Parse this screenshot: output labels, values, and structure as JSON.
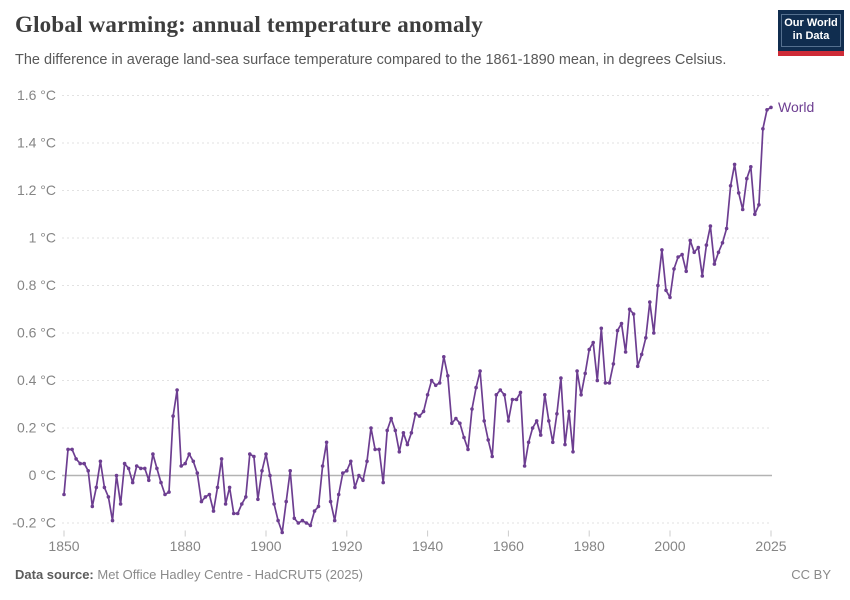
{
  "header": {
    "title": "Global warming: annual temperature anomaly",
    "subtitle": "The difference in average land-sea surface temperature compared to the 1861-1890 mean, in degrees Celsius.",
    "logo": {
      "line1": "Our World",
      "line2": "in Data",
      "bg_color": "#102D4F",
      "accent_color": "#CE2B37"
    }
  },
  "footer": {
    "source_label": "Data source:",
    "source_value": "Met Office Hadley Centre - HadCRUT5 (2025)",
    "license": "CC BY"
  },
  "chart_data": {
    "type": "line",
    "title": "Global warming: annual temperature anomaly",
    "subtitle": "The difference in average land-sea surface temperature compared to the 1861-1890 mean, in degrees Celsius.",
    "xlabel": "",
    "ylabel": "",
    "xlim": [
      1850,
      2025
    ],
    "ylim": [
      -0.3,
      1.65
    ],
    "grid": "horizontal-dashed",
    "zero_line": true,
    "legend_position": "end-of-line-label",
    "x_ticks": [
      1850,
      1880,
      1900,
      1920,
      1940,
      1960,
      1980,
      2000,
      2025
    ],
    "y_ticks": [
      -0.2,
      0,
      0.2,
      0.4,
      0.6,
      0.8,
      1,
      1.2,
      1.4,
      1.6
    ],
    "y_tick_labels": [
      "-0.2 °C",
      "0 °C",
      "0.2 °C",
      "0.4 °C",
      "0.6 °C",
      "0.8 °C",
      "1 °C",
      "1.2 °C",
      "1.4 °C",
      "1.6 °C"
    ],
    "unit": "°C",
    "series": [
      {
        "name": "World",
        "color": "#6D3E91",
        "x": [
          1850,
          1851,
          1852,
          1853,
          1854,
          1855,
          1856,
          1857,
          1858,
          1859,
          1860,
          1861,
          1862,
          1863,
          1864,
          1865,
          1866,
          1867,
          1868,
          1869,
          1870,
          1871,
          1872,
          1873,
          1874,
          1875,
          1876,
          1877,
          1878,
          1879,
          1880,
          1881,
          1882,
          1883,
          1884,
          1885,
          1886,
          1887,
          1888,
          1889,
          1890,
          1891,
          1892,
          1893,
          1894,
          1895,
          1896,
          1897,
          1898,
          1899,
          1900,
          1901,
          1902,
          1903,
          1904,
          1905,
          1906,
          1907,
          1908,
          1909,
          1910,
          1911,
          1912,
          1913,
          1914,
          1915,
          1916,
          1917,
          1918,
          1919,
          1920,
          1921,
          1922,
          1923,
          1924,
          1925,
          1926,
          1927,
          1928,
          1929,
          1930,
          1931,
          1932,
          1933,
          1934,
          1935,
          1936,
          1937,
          1938,
          1939,
          1940,
          1941,
          1942,
          1943,
          1944,
          1945,
          1946,
          1947,
          1948,
          1949,
          1950,
          1951,
          1952,
          1953,
          1954,
          1955,
          1956,
          1957,
          1958,
          1959,
          1960,
          1961,
          1962,
          1963,
          1964,
          1965,
          1966,
          1967,
          1968,
          1969,
          1970,
          1971,
          1972,
          1973,
          1974,
          1975,
          1976,
          1977,
          1978,
          1979,
          1980,
          1981,
          1982,
          1983,
          1984,
          1985,
          1986,
          1987,
          1988,
          1989,
          1990,
          1991,
          1992,
          1993,
          1994,
          1995,
          1996,
          1997,
          1998,
          1999,
          2000,
          2001,
          2002,
          2003,
          2004,
          2005,
          2006,
          2007,
          2008,
          2009,
          2010,
          2011,
          2012,
          2013,
          2014,
          2015,
          2016,
          2017,
          2018,
          2019,
          2020,
          2021,
          2022,
          2023,
          2024,
          2025
        ],
        "values": [
          -0.08,
          0.11,
          0.11,
          0.07,
          0.05,
          0.05,
          0.02,
          -0.13,
          -0.05,
          0.06,
          -0.05,
          -0.09,
          -0.19,
          0.0,
          -0.12,
          0.05,
          0.03,
          -0.03,
          0.04,
          0.03,
          0.03,
          -0.02,
          0.09,
          0.03,
          -0.03,
          -0.08,
          -0.07,
          0.25,
          0.36,
          0.04,
          0.05,
          0.09,
          0.06,
          0.01,
          -0.11,
          -0.09,
          -0.08,
          -0.15,
          -0.05,
          0.07,
          -0.12,
          -0.05,
          -0.16,
          -0.16,
          -0.12,
          -0.09,
          0.09,
          0.08,
          -0.1,
          0.02,
          0.09,
          0.0,
          -0.12,
          -0.19,
          -0.24,
          -0.11,
          0.02,
          -0.18,
          -0.2,
          -0.19,
          -0.2,
          -0.21,
          -0.15,
          -0.13,
          0.04,
          0.14,
          -0.11,
          -0.19,
          -0.08,
          0.01,
          0.02,
          0.06,
          -0.05,
          0.0,
          -0.02,
          0.06,
          0.2,
          0.11,
          0.11,
          -0.03,
          0.19,
          0.24,
          0.19,
          0.1,
          0.18,
          0.13,
          0.18,
          0.26,
          0.25,
          0.27,
          0.34,
          0.4,
          0.38,
          0.39,
          0.5,
          0.42,
          0.22,
          0.24,
          0.22,
          0.16,
          0.11,
          0.28,
          0.37,
          0.44,
          0.23,
          0.15,
          0.08,
          0.34,
          0.36,
          0.34,
          0.23,
          0.32,
          0.32,
          0.35,
          0.04,
          0.14,
          0.2,
          0.23,
          0.17,
          0.34,
          0.23,
          0.14,
          0.26,
          0.41,
          0.13,
          0.27,
          0.1,
          0.44,
          0.34,
          0.43,
          0.53,
          0.56,
          0.4,
          0.62,
          0.39,
          0.39,
          0.47,
          0.61,
          0.64,
          0.52,
          0.7,
          0.68,
          0.46,
          0.51,
          0.58,
          0.73,
          0.6,
          0.8,
          0.95,
          0.78,
          0.75,
          0.87,
          0.92,
          0.93,
          0.86,
          0.99,
          0.94,
          0.96,
          0.84,
          0.97,
          1.05,
          0.89,
          0.94,
          0.98,
          1.04,
          1.22,
          1.31,
          1.19,
          1.12,
          1.25,
          1.3,
          1.1,
          1.14,
          1.46,
          1.54,
          1.55
        ]
      }
    ],
    "colors": {
      "line": "#6D3E91",
      "gridline": "#e2e2e2",
      "zero_line": "#b3b3b3",
      "tick": "#cccccc",
      "axis_text": "#858585"
    }
  }
}
